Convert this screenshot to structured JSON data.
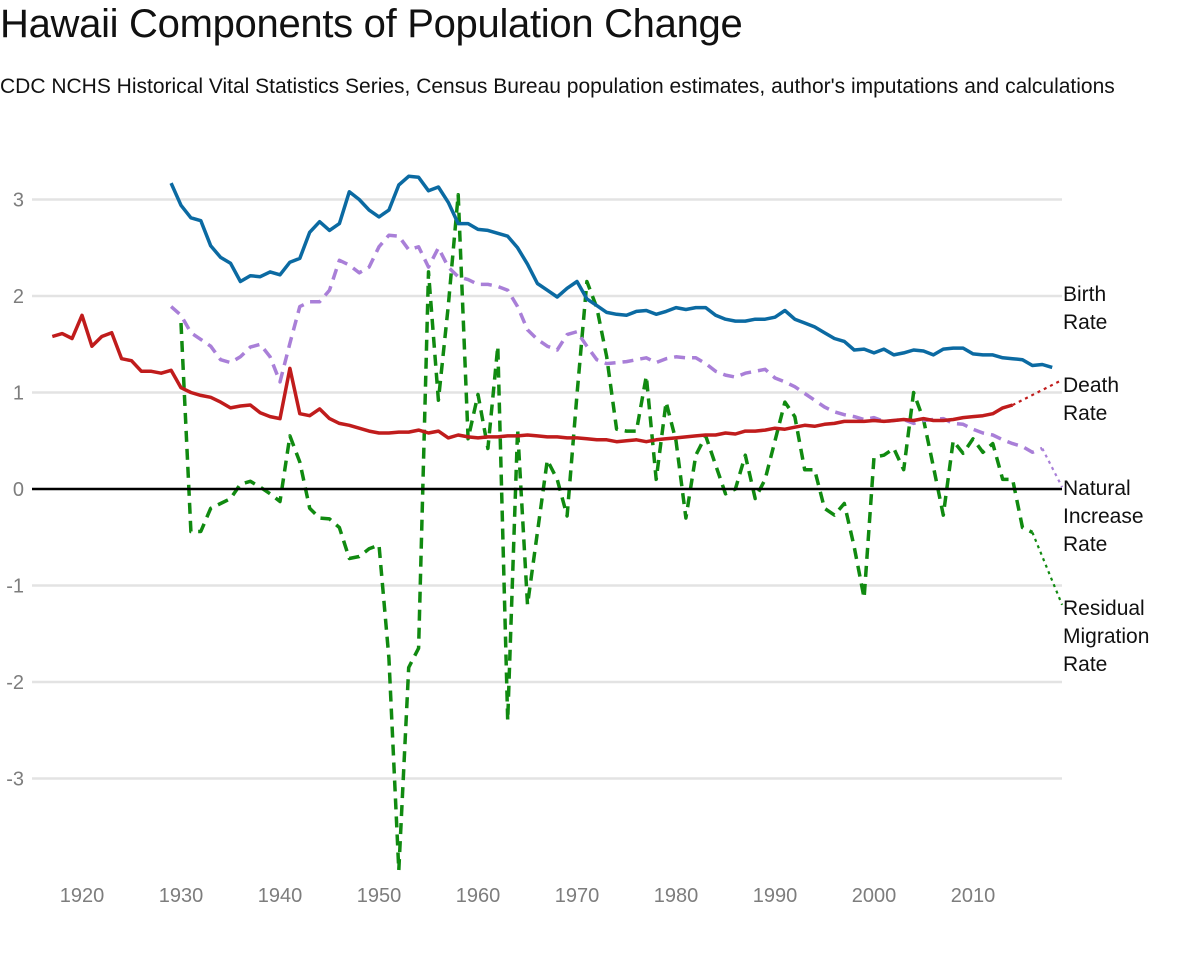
{
  "header": {
    "title": "Hawaii Components of Population Change",
    "subtitle": "CDC NCHS Historical Vital Statistics Series, Census Bureau population estimates, author's imputations and calculations"
  },
  "chart_data": {
    "type": "line",
    "title": "Hawaii Components of Population Change",
    "subtitle": "CDC NCHS Historical Vital Statistics Series, Census Bureau population estimates, author's imputations and calculations",
    "xlabel": "",
    "ylabel": "",
    "xlim": [
      1915,
      2019
    ],
    "ylim": [
      -4,
      3.3
    ],
    "x_ticks": [
      1920,
      1930,
      1940,
      1950,
      1960,
      1970,
      1980,
      1990,
      2000,
      2010
    ],
    "x_tick_labels": [
      "1920",
      "1930",
      "1940",
      "1950",
      "1960",
      "1970",
      "1980",
      "1990",
      "2000",
      "2010"
    ],
    "y_ticks": [
      3,
      2,
      1,
      0,
      -1,
      -2,
      -3
    ],
    "y_tick_labels": [
      "3",
      "2",
      "1",
      "0",
      "-1",
      "-2",
      "-3"
    ],
    "grid": true,
    "legend": "direct labels at right end of lines",
    "series": [
      {
        "name": "Birth Rate",
        "label_lines": [
          "Birth",
          "Rate"
        ],
        "color": "#0b6aa2",
        "style": "solid",
        "start_year": 1929,
        "values": [
          3.17,
          2.94,
          2.81,
          2.78,
          2.52,
          2.4,
          2.34,
          2.15,
          2.21,
          2.2,
          2.25,
          2.22,
          2.35,
          2.39,
          2.66,
          2.77,
          2.68,
          2.75,
          3.08,
          3.0,
          2.89,
          2.82,
          2.89,
          3.15,
          3.24,
          3.23,
          3.09,
          3.13,
          2.97,
          2.75,
          2.75,
          2.69,
          2.68,
          2.65,
          2.62,
          2.5,
          2.33,
          2.13,
          2.06,
          1.99,
          2.08,
          2.15,
          1.97,
          1.9,
          1.83,
          1.81,
          1.8,
          1.84,
          1.85,
          1.81,
          1.84,
          1.88,
          1.86,
          1.88,
          1.88,
          1.8,
          1.76,
          1.74,
          1.74,
          1.76,
          1.76,
          1.78,
          1.85,
          1.76,
          1.72,
          1.68,
          1.62,
          1.56,
          1.53,
          1.44,
          1.45,
          1.41,
          1.45,
          1.39,
          1.41,
          1.44,
          1.43,
          1.39,
          1.45,
          1.46,
          1.46,
          1.4,
          1.39,
          1.39,
          1.36,
          1.35,
          1.34,
          1.28,
          1.29,
          1.26
        ],
        "projected": null
      },
      {
        "name": "Death Rate",
        "label_lines": [
          "Death",
          "Rate"
        ],
        "color": "#c01c1c",
        "style": "solid",
        "start_year": 1917,
        "values": [
          1.58,
          1.61,
          1.56,
          1.8,
          1.48,
          1.58,
          1.62,
          1.35,
          1.33,
          1.22,
          1.22,
          1.2,
          1.23,
          1.05,
          1.0,
          0.97,
          0.95,
          0.9,
          0.84,
          0.86,
          0.87,
          0.79,
          0.75,
          0.73,
          1.25,
          0.78,
          0.76,
          0.83,
          0.73,
          0.68,
          0.66,
          0.63,
          0.6,
          0.58,
          0.58,
          0.59,
          0.59,
          0.61,
          0.58,
          0.6,
          0.53,
          0.56,
          0.54,
          0.53,
          0.54,
          0.54,
          0.55,
          0.55,
          0.56,
          0.55,
          0.54,
          0.54,
          0.53,
          0.53,
          0.52,
          0.51,
          0.51,
          0.49,
          0.5,
          0.51,
          0.49,
          0.51,
          0.52,
          0.53,
          0.54,
          0.55,
          0.56,
          0.56,
          0.58,
          0.57,
          0.6,
          0.6,
          0.61,
          0.63,
          0.62,
          0.64,
          0.66,
          0.65,
          0.67,
          0.68,
          0.7,
          0.7,
          0.7,
          0.71,
          0.7,
          0.71,
          0.72,
          0.71,
          0.73,
          0.71,
          0.71,
          0.72,
          0.74,
          0.75,
          0.76,
          0.78,
          0.84,
          0.87
        ],
        "projected": {
          "year": 2019,
          "value": 1.13,
          "style": "dotted"
        }
      },
      {
        "name": "Natural Increase Rate",
        "label_lines": [
          "Natural",
          "Increase",
          "Rate"
        ],
        "color": "#a97fd8",
        "style": "dashed",
        "start_year": 1929,
        "values": [
          1.89,
          1.8,
          1.62,
          1.55,
          1.48,
          1.34,
          1.31,
          1.37,
          1.47,
          1.5,
          1.37,
          1.11,
          1.51,
          1.89,
          1.94,
          1.94,
          2.06,
          2.37,
          2.32,
          2.24,
          2.3,
          2.51,
          2.63,
          2.62,
          2.48,
          2.51,
          2.3,
          2.5,
          2.3,
          2.2,
          2.17,
          2.12,
          2.12,
          2.1,
          2.06,
          1.89,
          1.65,
          1.55,
          1.48,
          1.44,
          1.6,
          1.63,
          1.48,
          1.34,
          1.3,
          1.31,
          1.32,
          1.34,
          1.36,
          1.31,
          1.35,
          1.37,
          1.36,
          1.36,
          1.3,
          1.22,
          1.18,
          1.16,
          1.2,
          1.22,
          1.24,
          1.15,
          1.11,
          1.06,
          0.99,
          0.92,
          0.85,
          0.8,
          0.77,
          0.75,
          0.72,
          0.74,
          0.7,
          0.71,
          0.72,
          0.68,
          0.71,
          0.72,
          0.73,
          0.68,
          0.67,
          0.62,
          0.58,
          0.56,
          0.51,
          0.47,
          0.44,
          0.38,
          0.42
        ],
        "projected": {
          "year": 2019,
          "value": 0.02,
          "style": "dotted"
        }
      },
      {
        "name": "Residual Migration Rate",
        "label_lines": [
          "Residual",
          "Migration",
          "Rate"
        ],
        "color": "#108a10",
        "style": "dashed",
        "start_year": 1930,
        "values": [
          1.72,
          -0.44,
          -0.44,
          -0.2,
          -0.15,
          -0.1,
          0.05,
          0.08,
          0.02,
          -0.05,
          -0.13,
          0.55,
          0.28,
          -0.2,
          -0.3,
          -0.31,
          -0.4,
          -0.72,
          -0.7,
          -0.62,
          -0.58,
          -1.75,
          -3.95,
          -1.85,
          -1.65,
          2.25,
          0.92,
          1.9,
          3.05,
          0.52,
          0.98,
          0.42,
          1.48,
          -2.4,
          0.62,
          -1.2,
          -0.45,
          0.3,
          0.1,
          -0.28,
          0.98,
          2.15,
          1.88,
          1.37,
          0.62,
          0.6,
          0.6,
          1.17,
          0.1,
          0.9,
          0.5,
          -0.3,
          0.35,
          0.55,
          0.25,
          -0.05,
          0.0,
          0.35,
          -0.1,
          0.1,
          0.5,
          0.9,
          0.75,
          0.2,
          0.2,
          -0.2,
          -0.27,
          -0.15,
          -0.6,
          -1.13,
          0.33,
          0.35,
          0.42,
          0.2,
          1.0,
          0.72,
          0.23,
          -0.27,
          0.5,
          0.37,
          0.52,
          0.38,
          0.47,
          0.1,
          0.1,
          -0.4,
          -0.45
        ],
        "projected": {
          "year": 2019,
          "value": -1.2,
          "style": "dotted"
        }
      }
    ]
  }
}
